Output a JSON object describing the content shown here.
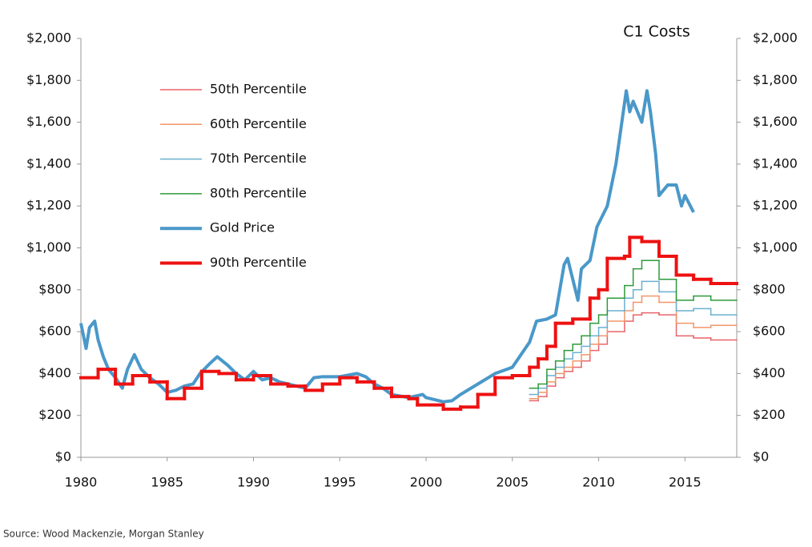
{
  "chart_data": {
    "type": "line",
    "title": "C1 Costs",
    "source": "Source: Wood Mackenzie, Morgan Stanley",
    "legend": "upper left",
    "xlim": [
      1980,
      2018
    ],
    "xticks": [
      1980,
      1985,
      1990,
      1995,
      2000,
      2005,
      2010,
      2015
    ],
    "ylim": [
      0,
      2000
    ],
    "yticks": [
      {
        "value": 0,
        "label": "$0"
      },
      {
        "value": 200,
        "label": "$200"
      },
      {
        "value": 400,
        "label": "$400"
      },
      {
        "value": 600,
        "label": "$600"
      },
      {
        "value": 800,
        "label": "$800"
      },
      {
        "value": 1000,
        "label": "$1,000"
      },
      {
        "value": 1200,
        "label": "$1,200"
      },
      {
        "value": 1400,
        "label": "$1,400"
      },
      {
        "value": 1600,
        "label": "$1,600"
      },
      {
        "value": 1800,
        "label": "$1,800"
      },
      {
        "value": 2000,
        "label": "$2,000"
      }
    ],
    "y2lim": [
      0,
      2000
    ],
    "y2ticks": [
      {
        "value": 0,
        "label": "$0"
      },
      {
        "value": 200,
        "label": "$200"
      },
      {
        "value": 400,
        "label": "$400"
      },
      {
        "value": 600,
        "label": "$600"
      },
      {
        "value": 800,
        "label": "$800"
      },
      {
        "value": 1000,
        "label": "$1,000"
      },
      {
        "value": 1200,
        "label": "$1,200"
      },
      {
        "value": 1400,
        "label": "$1,400"
      },
      {
        "value": 1600,
        "label": "$1,600"
      },
      {
        "value": 1800,
        "label": "$1,800"
      },
      {
        "value": 2000,
        "label": "$2,000"
      }
    ],
    "series": [
      {
        "name": "50th Percentile",
        "color": "#e8646a",
        "width": 1.5,
        "step": true,
        "x": [
          2006,
          2006.5,
          2007,
          2007.5,
          2008,
          2008.5,
          2009,
          2009.5,
          2010,
          2010.5,
          2011.5,
          2012,
          2012.5,
          2013.5,
          2014.5,
          2015.5,
          2016.5
        ],
        "values": [
          270,
          290,
          340,
          380,
          410,
          430,
          460,
          510,
          540,
          600,
          650,
          680,
          690,
          680,
          580,
          570,
          560
        ]
      },
      {
        "name": "60th Percentile",
        "color": "#f0966a",
        "width": 1.5,
        "step": true,
        "x": [
          2006,
          2006.5,
          2007,
          2007.5,
          2008,
          2008.5,
          2009,
          2009.5,
          2010,
          2010.5,
          2011.5,
          2012,
          2012.5,
          2013.5,
          2014.5,
          2015.5,
          2016.5
        ],
        "values": [
          280,
          310,
          360,
          400,
          430,
          460,
          490,
          540,
          580,
          650,
          700,
          740,
          770,
          740,
          640,
          620,
          630
        ]
      },
      {
        "name": "70th Percentile",
        "color": "#6ab0d0",
        "width": 1.5,
        "step": true,
        "x": [
          2006,
          2006.5,
          2007,
          2007.5,
          2008,
          2008.5,
          2009,
          2009.5,
          2010,
          2010.5,
          2011.5,
          2012,
          2012.5,
          2013.5,
          2014.5,
          2015.5,
          2016.5
        ],
        "values": [
          300,
          330,
          390,
          430,
          470,
          500,
          530,
          580,
          620,
          700,
          760,
          800,
          840,
          790,
          700,
          710,
          680
        ]
      },
      {
        "name": "80th Percentile",
        "color": "#2e9a3a",
        "width": 1.5,
        "step": true,
        "x": [
          2006,
          2006.5,
          2007,
          2007.5,
          2008,
          2008.5,
          2009,
          2009.5,
          2010,
          2010.5,
          2011.5,
          2012,
          2012.5,
          2013.5,
          2014.5,
          2015.5,
          2016.5
        ],
        "values": [
          330,
          350,
          420,
          460,
          510,
          540,
          580,
          640,
          680,
          760,
          820,
          900,
          940,
          850,
          750,
          770,
          750
        ]
      },
      {
        "name": "Gold Price",
        "color": "#4a98c9",
        "width": 4,
        "step": false,
        "x": [
          1980,
          1980.3,
          1980.5,
          1980.8,
          1981,
          1981.3,
          1981.6,
          1982,
          1982.4,
          1982.7,
          1983.1,
          1983.5,
          1984,
          1984.5,
          1985,
          1985.5,
          1986,
          1986.5,
          1986.9,
          1987.5,
          1987.9,
          1988.5,
          1989,
          1989.5,
          1990,
          1990.5,
          1991,
          1991.5,
          1992,
          1992.5,
          1993,
          1993.5,
          1994,
          1995,
          1996,
          1996.5,
          1997,
          1997.5,
          1998,
          1999,
          1999.8,
          2000,
          2001,
          2001.5,
          2002,
          2003,
          2004,
          2005,
          2006,
          2006.4,
          2007,
          2007.5,
          2008,
          2008.2,
          2008.8,
          2009,
          2009.5,
          2009.9,
          2010.5,
          2011,
          2011.6,
          2011.8,
          2012,
          2012.5,
          2012.8,
          2013,
          2013.3,
          2013.5,
          2014,
          2014.5,
          2014.8,
          2015,
          2015.5
        ],
        "values": [
          640,
          520,
          620,
          650,
          560,
          480,
          420,
          380,
          330,
          420,
          490,
          420,
          380,
          350,
          310,
          320,
          340,
          350,
          400,
          450,
          480,
          440,
          400,
          370,
          410,
          370,
          380,
          360,
          350,
          340,
          330,
          380,
          385,
          385,
          400,
          385,
          350,
          330,
          300,
          285,
          300,
          285,
          265,
          270,
          300,
          350,
          400,
          430,
          550,
          650,
          660,
          680,
          920,
          950,
          750,
          900,
          940,
          1100,
          1200,
          1400,
          1750,
          1650,
          1700,
          1600,
          1750,
          1650,
          1450,
          1250,
          1300,
          1300,
          1200,
          1250,
          1170
        ]
      },
      {
        "name": "90th Percentile",
        "color": "#ee1111",
        "width": 4,
        "step": true,
        "x": [
          1980,
          1981,
          1982,
          1983,
          1984,
          1985,
          1986,
          1987,
          1988,
          1989,
          1990,
          1991,
          1992,
          1993,
          1994,
          1995,
          1996,
          1997,
          1998,
          1999,
          1999.5,
          2001,
          2002,
          2003,
          2004,
          2005,
          2006,
          2006.5,
          2007,
          2007.5,
          2008.5,
          2009.5,
          2010,
          2010.5,
          2011.5,
          2011.8,
          2012.5,
          2013.5,
          2014.5,
          2015.5,
          2016.5
        ],
        "values": [
          380,
          420,
          350,
          390,
          360,
          280,
          330,
          410,
          400,
          370,
          390,
          350,
          340,
          320,
          350,
          380,
          360,
          330,
          290,
          280,
          250,
          230,
          240,
          300,
          380,
          390,
          430,
          470,
          530,
          640,
          660,
          760,
          800,
          950,
          960,
          1050,
          1030,
          960,
          870,
          850,
          830
        ]
      }
    ]
  }
}
